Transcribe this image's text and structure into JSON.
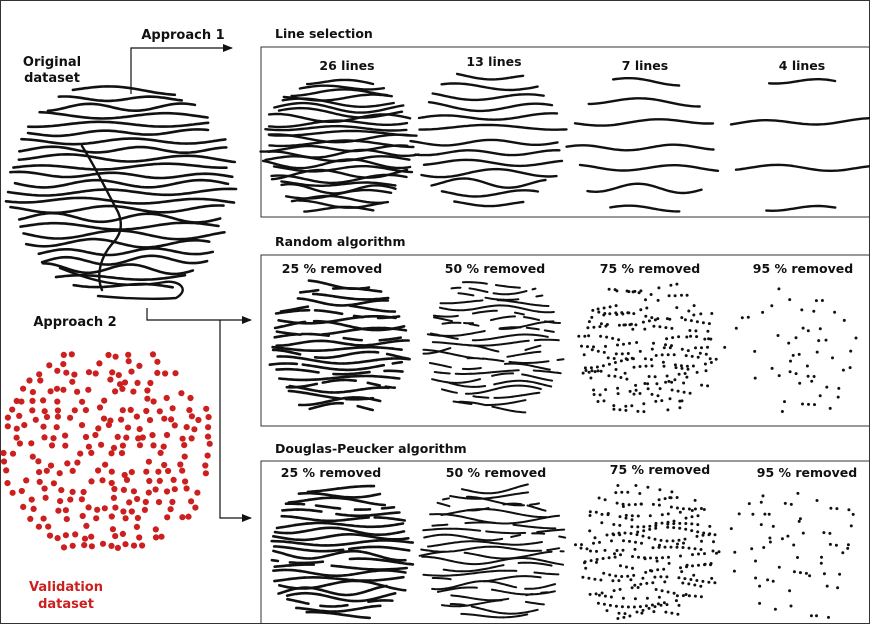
{
  "labels": {
    "original": [
      "Original",
      "dataset"
    ],
    "approach1": "Approach 1",
    "approach2": "Approach 2",
    "validation": [
      "Validation",
      "dataset"
    ]
  },
  "panels": {
    "line_selection": {
      "title": "Line selection",
      "captions": [
        "26 lines",
        "13 lines",
        "7 lines",
        "4 lines"
      ],
      "line_counts": [
        26,
        13,
        7,
        4
      ]
    },
    "random": {
      "title": "Random algorithm",
      "captions": [
        "25 % removed",
        "50 % removed",
        "75 % removed",
        "95 % removed"
      ],
      "removed_fraction": [
        0.25,
        0.5,
        0.75,
        0.95
      ]
    },
    "douglas_peucker": {
      "title": "Douglas-Peucker algorithm",
      "captions": [
        "25 % removed",
        "50 % removed",
        "75 % removed",
        "95 % removed"
      ],
      "removed_fraction": [
        0.25,
        0.5,
        0.75,
        0.95
      ]
    }
  },
  "colors": {
    "ink": "#111111",
    "validation_red": "#cc1f1f",
    "frame": "#333333"
  }
}
